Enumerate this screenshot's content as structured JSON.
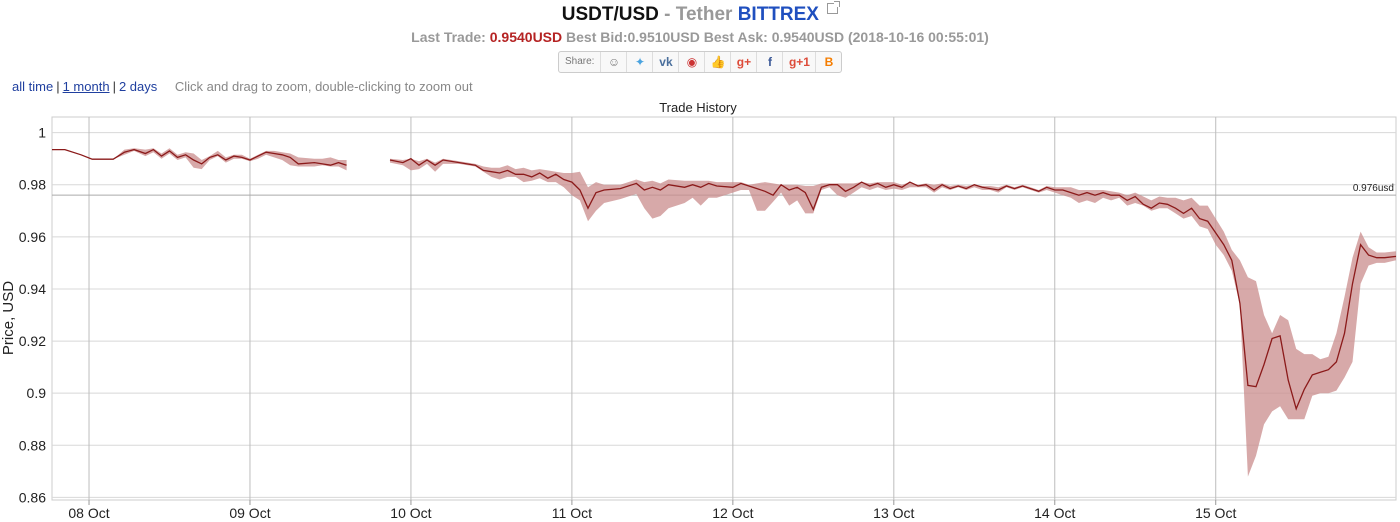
{
  "header": {
    "pair": "USDT/USD",
    "dash": "-",
    "name": "Tether",
    "exchange": "BITTREX",
    "last_trade_label": "Last Trade:",
    "last_trade_value": "0.9540USD",
    "bid_ask_text": "Best Bid:0.9510USD Best Ask: 0.9540USD (2018-10-16 00:55:01)"
  },
  "share": {
    "label": "Share:",
    "buttons": [
      {
        "icon": "reddit-icon",
        "glyph": "☺",
        "color": "#777"
      },
      {
        "icon": "twitter-icon",
        "glyph": "✦",
        "color": "#4aa3df"
      },
      {
        "icon": "vk-icon",
        "glyph": "vk",
        "color": "#4a6f9c"
      },
      {
        "icon": "weibo-icon",
        "glyph": "◉",
        "color": "#c33"
      },
      {
        "icon": "like-icon",
        "glyph": "👍",
        "color": "#3b5998"
      },
      {
        "icon": "google-plus-icon",
        "glyph": "g+",
        "color": "#dd4b39"
      },
      {
        "icon": "facebook-icon",
        "glyph": "f",
        "color": "#3b5998"
      },
      {
        "icon": "google-plus-one-icon",
        "glyph": "g+1",
        "color": "#dd4b39"
      },
      {
        "icon": "blogger-icon",
        "glyph": "B",
        "color": "#f57d00"
      }
    ]
  },
  "range": {
    "options": [
      "all time",
      "1 month",
      "2 days"
    ],
    "active": "1 month",
    "hint": "Click and drag to zoom, double-clicking to zoom out"
  },
  "chart_data": {
    "type": "line",
    "title": "Trade History",
    "xlabel": "",
    "ylabel": "Price, USD",
    "ylim": [
      0.859,
      1.006
    ],
    "xlim": [
      -0.23,
      8.12
    ],
    "x_tick_values": [
      0,
      1,
      2,
      3,
      4,
      5,
      6,
      7
    ],
    "x_tick_labels": [
      "08 Oct",
      "09 Oct",
      "10 Oct",
      "11 Oct",
      "12 Oct",
      "13 Oct",
      "14 Oct",
      "15 Oct"
    ],
    "y_ticks": [
      0.86,
      0.88,
      0.9,
      0.92,
      0.94,
      0.96,
      0.98,
      1
    ],
    "y_tick_labels": [
      "0.86",
      "0.88",
      "0.9",
      "0.92",
      "0.94",
      "0.96",
      "0.98",
      "1"
    ],
    "reference_line": {
      "value": 0.976,
      "label": "0.976usd"
    },
    "grid": true,
    "line_color": "#8b1a1a",
    "band_color": "#c98c8c",
    "segments": [
      [
        [
          -0.23,
          0.9935,
          0.9935,
          0.9935
        ],
        [
          -0.15,
          0.9935,
          0.9935,
          0.9935
        ],
        [
          -0.05,
          0.9915,
          0.9915,
          0.9915
        ],
        [
          0.02,
          0.9898,
          0.9898,
          0.9898
        ],
        [
          0.08,
          0.9898,
          0.9898,
          0.9898
        ],
        [
          0.15,
          0.9898,
          0.9898,
          0.9898
        ],
        [
          0.22,
          0.9925,
          0.9915,
          0.9935
        ],
        [
          0.28,
          0.9935,
          0.993,
          0.994
        ],
        [
          0.35,
          0.992,
          0.991,
          0.9935
        ],
        [
          0.4,
          0.9935,
          0.9925,
          0.994
        ],
        [
          0.45,
          0.991,
          0.99,
          0.992
        ],
        [
          0.5,
          0.993,
          0.992,
          0.994
        ],
        [
          0.55,
          0.9905,
          0.9895,
          0.9915
        ],
        [
          0.6,
          0.9915,
          0.9905,
          0.9925
        ],
        [
          0.65,
          0.9895,
          0.9865,
          0.992
        ],
        [
          0.7,
          0.988,
          0.986,
          0.9895
        ],
        [
          0.75,
          0.9905,
          0.9895,
          0.991
        ],
        [
          0.8,
          0.9915,
          0.991,
          0.993
        ],
        [
          0.85,
          0.9895,
          0.9885,
          0.9905
        ],
        [
          0.9,
          0.991,
          0.99,
          0.9915
        ],
        [
          0.95,
          0.9905,
          0.99,
          0.9915
        ],
        [
          1.0,
          0.9895,
          0.989,
          0.99
        ],
        [
          1.05,
          0.991,
          0.99,
          0.9915
        ],
        [
          1.1,
          0.9925,
          0.9915,
          0.993
        ],
        [
          1.15,
          0.992,
          0.9905,
          0.993
        ],
        [
          1.2,
          0.9915,
          0.9895,
          0.9925
        ],
        [
          1.25,
          0.9905,
          0.9875,
          0.992
        ],
        [
          1.3,
          0.988,
          0.987,
          0.9905
        ],
        [
          1.4,
          0.9885,
          0.987,
          0.99
        ],
        [
          1.45,
          0.988,
          0.9875,
          0.99
        ],
        [
          1.5,
          0.9875,
          0.987,
          0.9905
        ],
        [
          1.55,
          0.9885,
          0.987,
          0.9895
        ],
        [
          1.6,
          0.9875,
          0.9855,
          0.9895
        ]
      ],
      [
        [
          1.87,
          0.9895,
          0.9885,
          0.99
        ],
        [
          1.95,
          0.9885,
          0.9875,
          0.9895
        ],
        [
          2.0,
          0.99,
          0.9855,
          0.99
        ],
        [
          2.05,
          0.9875,
          0.986,
          0.989
        ],
        [
          2.1,
          0.9895,
          0.988,
          0.99
        ],
        [
          2.15,
          0.9875,
          0.985,
          0.9885
        ],
        [
          2.2,
          0.9895,
          0.988,
          0.99
        ],
        [
          2.3,
          0.9885,
          0.988,
          0.989
        ],
        [
          2.4,
          0.9875,
          0.987,
          0.988
        ],
        [
          2.45,
          0.9855,
          0.985,
          0.987
        ],
        [
          2.5,
          0.985,
          0.983,
          0.9865
        ],
        [
          2.55,
          0.9845,
          0.982,
          0.9865
        ],
        [
          2.6,
          0.9855,
          0.983,
          0.9875
        ],
        [
          2.65,
          0.984,
          0.983,
          0.986
        ],
        [
          2.7,
          0.984,
          0.981,
          0.9865
        ],
        [
          2.75,
          0.983,
          0.9815,
          0.9855
        ],
        [
          2.8,
          0.9845,
          0.9825,
          0.986
        ],
        [
          2.85,
          0.9825,
          0.981,
          0.9855
        ],
        [
          2.9,
          0.984,
          0.981,
          0.985
        ],
        [
          2.95,
          0.982,
          0.979,
          0.9845
        ],
        [
          3.0,
          0.981,
          0.976,
          0.9845
        ],
        [
          3.05,
          0.978,
          0.974,
          0.985
        ],
        [
          3.1,
          0.971,
          0.966,
          0.979
        ],
        [
          3.15,
          0.977,
          0.97,
          0.981
        ],
        [
          3.2,
          0.978,
          0.973,
          0.98
        ],
        [
          3.3,
          0.9785,
          0.9745,
          0.98
        ],
        [
          3.4,
          0.9805,
          0.9765,
          0.982
        ],
        [
          3.45,
          0.978,
          0.971,
          0.981
        ],
        [
          3.5,
          0.979,
          0.967,
          0.9815
        ],
        [
          3.55,
          0.978,
          0.968,
          0.9805
        ],
        [
          3.6,
          0.98,
          0.971,
          0.982
        ],
        [
          3.7,
          0.979,
          0.973,
          0.9815
        ],
        [
          3.75,
          0.98,
          0.975,
          0.9815
        ],
        [
          3.8,
          0.979,
          0.972,
          0.9815
        ],
        [
          3.85,
          0.9805,
          0.975,
          0.9815
        ],
        [
          3.9,
          0.9795,
          0.975,
          0.981
        ],
        [
          4.0,
          0.979,
          0.977,
          0.981
        ],
        [
          4.05,
          0.9805,
          0.978,
          0.981
        ],
        [
          4.1,
          0.9795,
          0.978,
          0.98
        ],
        [
          4.15,
          0.9785,
          0.97,
          0.9805
        ],
        [
          4.2,
          0.9775,
          0.97,
          0.981
        ],
        [
          4.25,
          0.976,
          0.9735,
          0.9805
        ],
        [
          4.3,
          0.98,
          0.977,
          0.98
        ],
        [
          4.35,
          0.978,
          0.972,
          0.98
        ],
        [
          4.4,
          0.979,
          0.974,
          0.98
        ],
        [
          4.45,
          0.977,
          0.969,
          0.9795
        ],
        [
          4.5,
          0.9705,
          0.969,
          0.9795
        ],
        [
          4.55,
          0.979,
          0.978,
          0.9805
        ],
        [
          4.6,
          0.98,
          0.979,
          0.9805
        ],
        [
          4.65,
          0.98,
          0.976,
          0.9805
        ],
        [
          4.7,
          0.9775,
          0.975,
          0.9805
        ],
        [
          4.75,
          0.979,
          0.977,
          0.9805
        ],
        [
          4.8,
          0.981,
          0.979,
          0.981
        ],
        [
          4.85,
          0.9795,
          0.978,
          0.9805
        ],
        [
          4.9,
          0.9805,
          0.979,
          0.981
        ],
        [
          4.95,
          0.979,
          0.978,
          0.981
        ],
        [
          5.0,
          0.98,
          0.9785,
          0.981
        ],
        [
          5.05,
          0.979,
          0.978,
          0.98
        ],
        [
          5.1,
          0.981,
          0.979,
          0.981
        ],
        [
          5.15,
          0.9795,
          0.979,
          0.98
        ],
        [
          5.2,
          0.98,
          0.979,
          0.9805
        ],
        [
          5.25,
          0.978,
          0.977,
          0.98
        ],
        [
          5.3,
          0.98,
          0.979,
          0.9805
        ],
        [
          5.35,
          0.9785,
          0.978,
          0.9795
        ],
        [
          5.4,
          0.9795,
          0.979,
          0.98
        ],
        [
          5.45,
          0.9785,
          0.978,
          0.9795
        ],
        [
          5.5,
          0.98,
          0.979,
          0.98
        ],
        [
          5.55,
          0.979,
          0.978,
          0.9795
        ],
        [
          5.6,
          0.9785,
          0.978,
          0.9795
        ],
        [
          5.65,
          0.978,
          0.977,
          0.979
        ],
        [
          5.7,
          0.9795,
          0.979,
          0.98
        ],
        [
          5.75,
          0.9785,
          0.978,
          0.979
        ],
        [
          5.8,
          0.9795,
          0.979,
          0.98
        ],
        [
          5.85,
          0.9785,
          0.978,
          0.979
        ],
        [
          5.9,
          0.9775,
          0.977,
          0.978
        ],
        [
          5.95,
          0.979,
          0.978,
          0.9795
        ],
        [
          6.0,
          0.978,
          0.977,
          0.979
        ],
        [
          6.05,
          0.978,
          0.976,
          0.979
        ],
        [
          6.1,
          0.977,
          0.975,
          0.979
        ],
        [
          6.15,
          0.976,
          0.973,
          0.978
        ],
        [
          6.2,
          0.977,
          0.974,
          0.978
        ],
        [
          6.25,
          0.976,
          0.973,
          0.978
        ],
        [
          6.3,
          0.977,
          0.975,
          0.978
        ],
        [
          6.35,
          0.976,
          0.974,
          0.9775
        ],
        [
          6.4,
          0.976,
          0.975,
          0.977
        ],
        [
          6.45,
          0.974,
          0.972,
          0.976
        ],
        [
          6.5,
          0.9755,
          0.973,
          0.977
        ],
        [
          6.55,
          0.9725,
          0.972,
          0.9755
        ],
        [
          6.6,
          0.971,
          0.97,
          0.974
        ],
        [
          6.65,
          0.973,
          0.971,
          0.9755
        ],
        [
          6.7,
          0.9725,
          0.971,
          0.975
        ],
        [
          6.75,
          0.971,
          0.969,
          0.975
        ],
        [
          6.8,
          0.969,
          0.967,
          0.974
        ],
        [
          6.85,
          0.971,
          0.968,
          0.975
        ],
        [
          6.9,
          0.967,
          0.964,
          0.972
        ],
        [
          6.95,
          0.966,
          0.963,
          0.972
        ],
        [
          7.0,
          0.9615,
          0.957,
          0.967
        ],
        [
          7.05,
          0.957,
          0.953,
          0.962
        ],
        [
          7.1,
          0.951,
          0.947,
          0.955
        ],
        [
          7.15,
          0.9345,
          0.934,
          0.951
        ],
        [
          7.2,
          0.903,
          0.868,
          0.9445
        ],
        [
          7.25,
          0.9025,
          0.876,
          0.943
        ],
        [
          7.3,
          0.911,
          0.888,
          0.93
        ],
        [
          7.35,
          0.921,
          0.893,
          0.923
        ],
        [
          7.4,
          0.922,
          0.895,
          0.93
        ],
        [
          7.45,
          0.905,
          0.89,
          0.928
        ],
        [
          7.5,
          0.894,
          0.89,
          0.917
        ],
        [
          7.55,
          0.9015,
          0.89,
          0.915
        ],
        [
          7.6,
          0.907,
          0.899,
          0.915
        ],
        [
          7.65,
          0.908,
          0.9,
          0.913
        ],
        [
          7.7,
          0.909,
          0.9,
          0.914
        ],
        [
          7.75,
          0.912,
          0.901,
          0.923
        ],
        [
          7.8,
          0.923,
          0.906,
          0.937
        ],
        [
          7.85,
          0.942,
          0.912,
          0.952
        ],
        [
          7.9,
          0.957,
          0.942,
          0.962
        ],
        [
          7.95,
          0.953,
          0.949,
          0.956
        ],
        [
          8.0,
          0.952,
          0.95,
          0.954
        ],
        [
          8.05,
          0.952,
          0.95,
          0.954
        ],
        [
          8.12,
          0.9525,
          0.951,
          0.9545
        ]
      ]
    ]
  }
}
